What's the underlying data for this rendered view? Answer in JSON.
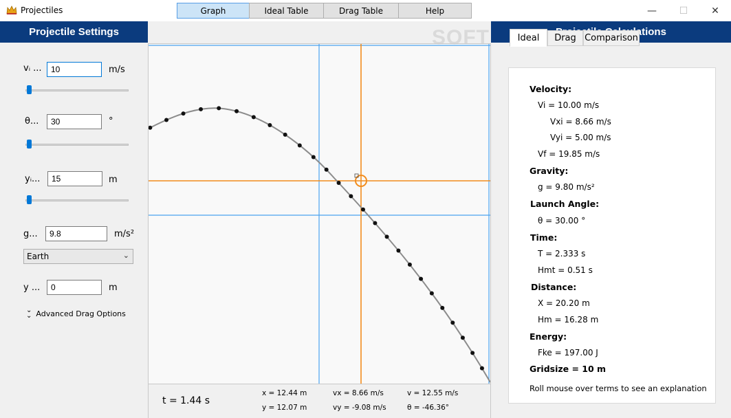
{
  "window": {
    "title": "Projectiles",
    "minimize": "—",
    "maximize": "☐",
    "close": "✕"
  },
  "left_panel": {
    "header": "Projectile Settings",
    "velocity": {
      "label": "vᵢ ...",
      "value": "10",
      "unit": "m/s",
      "slider_fraction": 0.0
    },
    "angle": {
      "label": "θ...",
      "value": "30",
      "unit": "°",
      "slider_fraction": 0.0
    },
    "height": {
      "label": "yᵢ...",
      "value": "15",
      "unit": "m",
      "slider_fraction": 0.0
    },
    "gravity": {
      "label": "g...",
      "value": "9.8",
      "unit": "m/s²"
    },
    "planet": {
      "selected": "Earth"
    },
    "y_offset": {
      "label": "y ...",
      "value": "0",
      "unit": "m"
    },
    "advanced_label": "Advanced Drag Options"
  },
  "tabs": [
    {
      "label": "Graph",
      "active": true
    },
    {
      "label": "Ideal Table",
      "active": false
    },
    {
      "label": "Drag Table",
      "active": false
    },
    {
      "label": "Help",
      "active": false
    }
  ],
  "status": {
    "time": "t = 1.44 s",
    "x": "x = 12.44 m",
    "y": "y = 12.07 m",
    "vx": "vx = 8.66 m/s",
    "vy": "vy = -9.08 m/s",
    "v": "v = 12.55 m/s",
    "theta": "θ = -46.36°"
  },
  "right_panel": {
    "header": "Projectile Calculations",
    "tabs": [
      {
        "label": "Ideal",
        "active": true
      },
      {
        "label": "Drag",
        "active": false
      },
      {
        "label": "Comparison",
        "active": false
      }
    ],
    "velocity_head": "Velocity:",
    "vi": "Vi = 10.00 m/s",
    "vxi": "Vxi = 8.66 m/s",
    "vyi": "Vyi = 5.00 m/s",
    "vf": "Vf = 19.85 m/s",
    "gravity_head": "Gravity:",
    "g": "g = 9.80 m/s²",
    "angle_head": "Launch Angle:",
    "theta": "θ = 30.00 °",
    "time_head": "Time:",
    "T": "T = 2.333 s",
    "hmt": "Hmt = 0.51 s",
    "distance_head": "Distance:",
    "X": "X = 20.20 m",
    "hm": "Hm = 16.28 m",
    "energy_head": "Energy:",
    "fke": "Fke = 197.00 J",
    "gridsize": "Gridsize = 10 m",
    "hint": "Roll mouse over terms to see an explanation"
  },
  "watermark": "SOFTPEDIA",
  "colors": {
    "header_bg": "#0b3b7e",
    "accent": "#0078d7",
    "crosshair": "#f28c1c",
    "grid": "#4aa3f0"
  }
}
